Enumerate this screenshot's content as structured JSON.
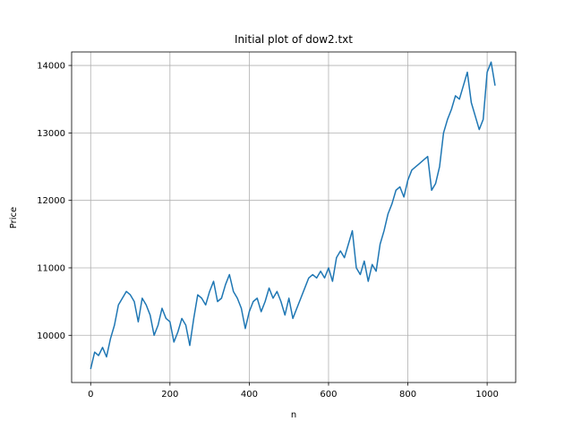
{
  "chart_data": {
    "type": "line",
    "title": "Initial plot of dow2.txt",
    "xlabel": "n",
    "ylabel": "Price",
    "xlim": [
      -48,
      1072
    ],
    "ylim": [
      9300,
      14200
    ],
    "xticks": [
      0,
      200,
      400,
      600,
      800,
      1000
    ],
    "yticks": [
      10000,
      11000,
      12000,
      13000,
      14000
    ],
    "grid": true,
    "color": "#1f77b4",
    "series": [
      {
        "x": [
          0,
          10,
          20,
          30,
          40,
          50,
          60,
          70,
          80,
          90,
          100,
          110,
          120,
          130,
          140,
          150,
          160,
          170,
          180,
          190,
          200,
          210,
          220,
          230,
          240,
          250,
          260,
          270,
          280,
          290,
          300,
          310,
          320,
          330,
          340,
          350,
          360,
          370,
          380,
          390,
          400,
          410,
          420,
          430,
          440,
          450,
          460,
          470,
          480,
          490,
          500,
          510,
          520,
          530,
          540,
          550,
          560,
          570,
          580,
          590,
          600,
          610,
          620,
          630,
          640,
          650,
          660,
          670,
          680,
          690,
          700,
          710,
          720,
          730,
          740,
          750,
          760,
          770,
          780,
          790,
          800,
          810,
          820,
          830,
          840,
          850,
          860,
          870,
          880,
          890,
          900,
          910,
          920,
          930,
          940,
          950,
          960,
          970,
          980,
          990,
          1000,
          1010,
          1020
        ],
        "values": [
          9500,
          9750,
          9700,
          9820,
          9680,
          9950,
          10150,
          10450,
          10550,
          10650,
          10600,
          10500,
          10200,
          10550,
          10450,
          10300,
          10000,
          10150,
          10400,
          10250,
          10200,
          9900,
          10050,
          10250,
          10150,
          9850,
          10250,
          10600,
          10550,
          10450,
          10650,
          10800,
          10500,
          10550,
          10750,
          10900,
          10650,
          10550,
          10400,
          10100,
          10350,
          10500,
          10550,
          10350,
          10500,
          10700,
          10550,
          10650,
          10500,
          10300,
          10550,
          10250,
          10400,
          10550,
          10700,
          10850,
          10900,
          10850,
          10950,
          10850,
          11000,
          10800,
          11150,
          11250,
          11150,
          11350,
          11550,
          11000,
          10900,
          11100,
          10800,
          11050,
          10950,
          11350,
          11550,
          11800,
          11950,
          12150,
          12200,
          12050,
          12300,
          12450,
          12500,
          12550,
          12600,
          12650,
          12150,
          12250,
          12500,
          13000,
          13200,
          13350,
          13550,
          13500,
          13700,
          13900,
          13450,
          13250,
          13050,
          13200,
          13900,
          14050,
          13700
        ]
      }
    ]
  }
}
